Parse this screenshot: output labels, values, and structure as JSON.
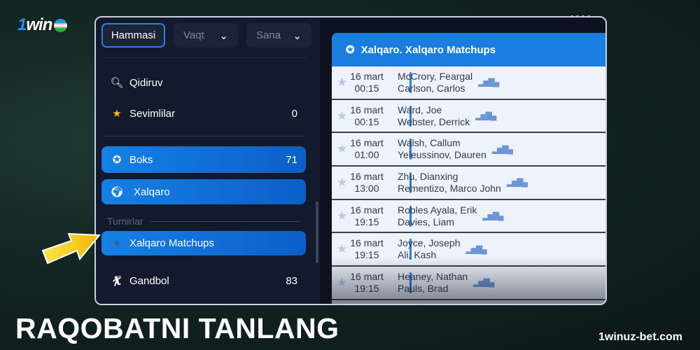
{
  "logo": {
    "text_one": "1",
    "text_win": "win"
  },
  "filters": {
    "all": "Hammasi",
    "time": "Vaqt",
    "date": "Sana"
  },
  "sidebar": {
    "search": "Qidiruv",
    "favorites": {
      "label": "Sevimlilar",
      "count": "0"
    },
    "boxing": {
      "label": "Boks",
      "count": "71"
    },
    "international": {
      "label": "Xalqaro"
    },
    "section": "Turnirlar",
    "tournament": {
      "label": "Xalqaro Matchups"
    },
    "handball": {
      "label": "Gandbol",
      "count": "83"
    }
  },
  "card": {
    "title": "Xalqaro. Xalqaro Matchups",
    "matches": [
      {
        "date": "16 mart",
        "time": "00:15",
        "p1": "McCrory, Feargal",
        "p2": "Carlson, Carlos"
      },
      {
        "date": "16 mart",
        "time": "00:15",
        "p1": "Ward, Joe",
        "p2": "Webster, Derrick"
      },
      {
        "date": "16 mart",
        "time": "01:00",
        "p1": "Walsh, Callum",
        "p2": "Yeleussinov, Dauren"
      },
      {
        "date": "16 mart",
        "time": "13:00",
        "p1": "Zhu, Dianxing",
        "p2": "Rementizo, Marco John"
      },
      {
        "date": "16 mart",
        "time": "19:15",
        "p1": "Robles Ayala, Erik",
        "p2": "Davies, Liam"
      },
      {
        "date": "16 mart",
        "time": "19:15",
        "p1": "Joyce, Joseph",
        "p2": "Ali, Kash"
      },
      {
        "date": "16 mart",
        "time": "19:15",
        "p1": "Heaney, Nathan",
        "p2": "Pauls, Brad"
      }
    ]
  },
  "caption": "RAQOBATNI TANLANG",
  "site": "1winuz-bet.com",
  "colors": {
    "accent": "#1a7de0",
    "arrow": "#f5c21a"
  }
}
